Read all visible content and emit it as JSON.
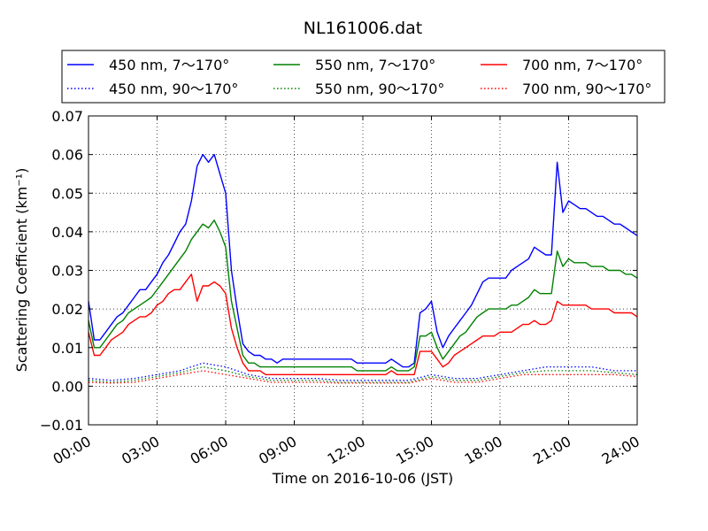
{
  "chart_data": {
    "type": "line",
    "title": "NL161006.dat",
    "xlabel": "Time on 2016-10-06 (JST)",
    "ylabel": "Scattering Coefficient (km⁻¹)",
    "xlim": [
      0,
      24
    ],
    "ylim": [
      -0.01,
      0.07
    ],
    "x_ticks": [
      "00:00",
      "03:00",
      "06:00",
      "09:00",
      "12:00",
      "15:00",
      "18:00",
      "21:00",
      "24:00"
    ],
    "y_ticks": [
      "−0.01",
      "0.00",
      "0.01",
      "0.02",
      "0.03",
      "0.04",
      "0.05",
      "0.06",
      "0.07"
    ],
    "grid": true,
    "legend_position": "top (above plot)",
    "series": [
      {
        "name": "450 nm, 7～170°",
        "color": "#0000ff",
        "style": "solid",
        "x": [
          0,
          0.25,
          0.5,
          0.75,
          1,
          1.25,
          1.5,
          1.75,
          2,
          2.25,
          2.5,
          2.75,
          3,
          3.25,
          3.5,
          3.75,
          4,
          4.25,
          4.5,
          4.75,
          5,
          5.25,
          5.5,
          5.75,
          6,
          6.25,
          6.5,
          6.75,
          7,
          7.25,
          7.5,
          7.75,
          8,
          8.25,
          8.5,
          8.75,
          9,
          9.25,
          9.5,
          9.75,
          10,
          10.25,
          10.5,
          10.75,
          11,
          11.25,
          11.5,
          11.75,
          12,
          12.25,
          12.5,
          12.75,
          13,
          13.25,
          13.5,
          13.75,
          14,
          14.25,
          14.5,
          14.75,
          15,
          15.25,
          15.5,
          15.75,
          16,
          16.25,
          16.5,
          16.75,
          17,
          17.25,
          17.5,
          17.75,
          18,
          18.25,
          18.5,
          18.75,
          19,
          19.25,
          19.5,
          19.75,
          20,
          20.25,
          20.5,
          20.75,
          21,
          21.25,
          21.5,
          21.75,
          22,
          22.25,
          22.5,
          22.75,
          23,
          23.25,
          23.5,
          23.75,
          24
        ],
        "y": [
          0.022,
          0.012,
          0.012,
          0.014,
          0.016,
          0.018,
          0.019,
          0.021,
          0.023,
          0.025,
          0.025,
          0.027,
          0.029,
          0.032,
          0.034,
          0.037,
          0.04,
          0.042,
          0.048,
          0.057,
          0.06,
          0.058,
          0.06,
          0.055,
          0.05,
          0.03,
          0.02,
          0.011,
          0.009,
          0.008,
          0.008,
          0.007,
          0.007,
          0.006,
          0.007,
          0.007,
          0.007,
          0.007,
          0.007,
          0.007,
          0.007,
          0.007,
          0.007,
          0.007,
          0.007,
          0.007,
          0.007,
          0.006,
          0.006,
          0.006,
          0.006,
          0.006,
          0.006,
          0.007,
          0.006,
          0.005,
          0.005,
          0.006,
          0.019,
          0.02,
          0.022,
          0.014,
          0.01,
          0.013,
          0.015,
          0.017,
          0.019,
          0.021,
          0.024,
          0.027,
          0.028,
          0.028,
          0.028,
          0.028,
          0.03,
          0.031,
          0.032,
          0.033,
          0.036,
          0.035,
          0.034,
          0.034,
          0.058,
          0.045,
          0.048,
          0.047,
          0.046,
          0.046,
          0.045,
          0.044,
          0.044,
          0.043,
          0.042,
          0.042,
          0.041,
          0.04,
          0.039
        ]
      },
      {
        "name": "450 nm, 90～170°",
        "color": "#0000ff",
        "style": "dotted",
        "x": [
          0,
          1,
          2,
          3,
          4,
          5,
          6,
          7,
          8,
          9,
          10,
          11,
          12,
          13,
          14,
          15,
          16,
          17,
          18,
          19,
          20,
          21,
          22,
          23,
          24
        ],
        "y": [
          0.002,
          0.0015,
          0.002,
          0.003,
          0.004,
          0.006,
          0.005,
          0.003,
          0.002,
          0.002,
          0.002,
          0.0015,
          0.0015,
          0.0015,
          0.0015,
          0.003,
          0.002,
          0.002,
          0.003,
          0.004,
          0.005,
          0.005,
          0.005,
          0.004,
          0.004
        ]
      },
      {
        "name": "550 nm, 7～170°",
        "color": "#008000",
        "style": "solid",
        "x": [
          0,
          0.25,
          0.5,
          0.75,
          1,
          1.25,
          1.5,
          1.75,
          2,
          2.25,
          2.5,
          2.75,
          3,
          3.25,
          3.5,
          3.75,
          4,
          4.25,
          4.5,
          4.75,
          5,
          5.25,
          5.5,
          5.75,
          6,
          6.25,
          6.5,
          6.75,
          7,
          7.25,
          7.5,
          7.75,
          8,
          8.25,
          8.5,
          8.75,
          9,
          9.25,
          9.5,
          9.75,
          10,
          10.25,
          10.5,
          10.75,
          11,
          11.25,
          11.5,
          11.75,
          12,
          12.25,
          12.5,
          12.75,
          13,
          13.25,
          13.5,
          13.75,
          14,
          14.25,
          14.5,
          14.75,
          15,
          15.25,
          15.5,
          15.75,
          16,
          16.25,
          16.5,
          16.75,
          17,
          17.25,
          17.5,
          17.75,
          18,
          18.25,
          18.5,
          18.75,
          19,
          19.25,
          19.5,
          19.75,
          20,
          20.25,
          20.5,
          20.75,
          21,
          21.25,
          21.5,
          21.75,
          22,
          22.25,
          22.5,
          22.75,
          23,
          23.25,
          23.5,
          23.75,
          24
        ],
        "y": [
          0.017,
          0.01,
          0.01,
          0.012,
          0.014,
          0.016,
          0.017,
          0.019,
          0.02,
          0.021,
          0.022,
          0.023,
          0.025,
          0.027,
          0.029,
          0.031,
          0.033,
          0.035,
          0.038,
          0.04,
          0.042,
          0.041,
          0.043,
          0.04,
          0.036,
          0.022,
          0.015,
          0.008,
          0.006,
          0.006,
          0.005,
          0.005,
          0.005,
          0.005,
          0.005,
          0.005,
          0.005,
          0.005,
          0.005,
          0.005,
          0.005,
          0.005,
          0.005,
          0.005,
          0.005,
          0.005,
          0.005,
          0.004,
          0.004,
          0.004,
          0.004,
          0.004,
          0.004,
          0.005,
          0.004,
          0.004,
          0.004,
          0.005,
          0.013,
          0.013,
          0.014,
          0.01,
          0.007,
          0.009,
          0.011,
          0.013,
          0.014,
          0.016,
          0.018,
          0.019,
          0.02,
          0.02,
          0.02,
          0.02,
          0.021,
          0.021,
          0.022,
          0.023,
          0.025,
          0.024,
          0.024,
          0.024,
          0.035,
          0.031,
          0.033,
          0.032,
          0.032,
          0.032,
          0.031,
          0.031,
          0.031,
          0.03,
          0.03,
          0.03,
          0.029,
          0.029,
          0.028
        ]
      },
      {
        "name": "550 nm, 90～170°",
        "color": "#008000",
        "style": "dotted",
        "x": [
          0,
          1,
          2,
          3,
          4,
          5,
          6,
          7,
          8,
          9,
          10,
          11,
          12,
          13,
          14,
          15,
          16,
          17,
          18,
          19,
          20,
          21,
          22,
          23,
          24
        ],
        "y": [
          0.0015,
          0.001,
          0.0015,
          0.0025,
          0.0035,
          0.005,
          0.004,
          0.0025,
          0.0015,
          0.0015,
          0.0015,
          0.001,
          0.001,
          0.001,
          0.001,
          0.0025,
          0.0015,
          0.0015,
          0.0025,
          0.0035,
          0.004,
          0.004,
          0.004,
          0.0035,
          0.003
        ]
      },
      {
        "name": "700 nm, 7～170°",
        "color": "#ff0000",
        "style": "solid",
        "x": [
          0,
          0.25,
          0.5,
          0.75,
          1,
          1.25,
          1.5,
          1.75,
          2,
          2.25,
          2.5,
          2.75,
          3,
          3.25,
          3.5,
          3.75,
          4,
          4.25,
          4.5,
          4.75,
          5,
          5.25,
          5.5,
          5.75,
          6,
          6.25,
          6.5,
          6.75,
          7,
          7.25,
          7.5,
          7.75,
          8,
          8.25,
          8.5,
          8.75,
          9,
          9.25,
          9.5,
          9.75,
          10,
          10.25,
          10.5,
          10.75,
          11,
          11.25,
          11.5,
          11.75,
          12,
          12.25,
          12.5,
          12.75,
          13,
          13.25,
          13.5,
          13.75,
          14,
          14.25,
          14.5,
          14.75,
          15,
          15.25,
          15.5,
          15.75,
          16,
          16.25,
          16.5,
          16.75,
          17,
          17.25,
          17.5,
          17.75,
          18,
          18.25,
          18.5,
          18.75,
          19,
          19.25,
          19.5,
          19.75,
          20,
          20.25,
          20.5,
          20.75,
          21,
          21.25,
          21.5,
          21.75,
          22,
          22.25,
          22.5,
          22.75,
          23,
          23.25,
          23.5,
          23.75,
          24
        ],
        "y": [
          0.014,
          0.008,
          0.008,
          0.01,
          0.012,
          0.013,
          0.014,
          0.016,
          0.017,
          0.018,
          0.018,
          0.019,
          0.021,
          0.022,
          0.024,
          0.025,
          0.025,
          0.027,
          0.029,
          0.022,
          0.026,
          0.026,
          0.027,
          0.026,
          0.024,
          0.015,
          0.01,
          0.006,
          0.004,
          0.004,
          0.004,
          0.003,
          0.003,
          0.003,
          0.003,
          0.003,
          0.003,
          0.003,
          0.003,
          0.003,
          0.003,
          0.003,
          0.003,
          0.003,
          0.003,
          0.003,
          0.003,
          0.003,
          0.003,
          0.003,
          0.003,
          0.003,
          0.003,
          0.004,
          0.003,
          0.003,
          0.003,
          0.003,
          0.009,
          0.009,
          0.009,
          0.007,
          0.005,
          0.006,
          0.008,
          0.009,
          0.01,
          0.011,
          0.012,
          0.013,
          0.013,
          0.013,
          0.014,
          0.014,
          0.014,
          0.015,
          0.016,
          0.016,
          0.017,
          0.016,
          0.016,
          0.017,
          0.022,
          0.021,
          0.021,
          0.021,
          0.021,
          0.021,
          0.02,
          0.02,
          0.02,
          0.02,
          0.019,
          0.019,
          0.019,
          0.019,
          0.018
        ]
      },
      {
        "name": "700 nm, 90～170°",
        "color": "#ff0000",
        "style": "dotted",
        "x": [
          0,
          1,
          2,
          3,
          4,
          5,
          6,
          7,
          8,
          9,
          10,
          11,
          12,
          13,
          14,
          15,
          16,
          17,
          18,
          19,
          20,
          21,
          22,
          23,
          24
        ],
        "y": [
          0.001,
          0.0008,
          0.001,
          0.002,
          0.003,
          0.004,
          0.003,
          0.002,
          0.001,
          0.001,
          0.001,
          0.0008,
          0.0008,
          0.0008,
          0.0008,
          0.002,
          0.001,
          0.001,
          0.002,
          0.003,
          0.003,
          0.003,
          0.003,
          0.003,
          0.0025
        ]
      }
    ]
  }
}
